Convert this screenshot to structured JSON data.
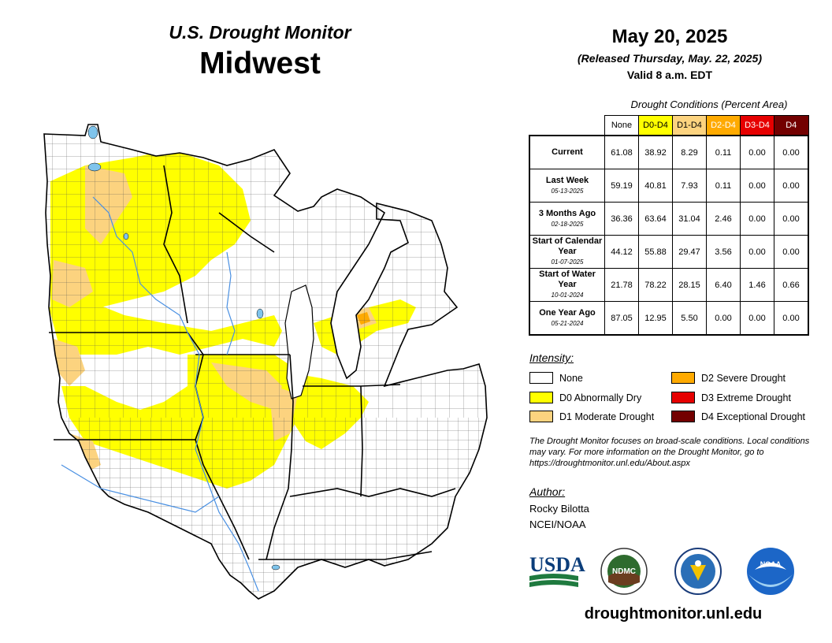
{
  "header": {
    "subtitle": "U.S. Drought Monitor",
    "region": "Midwest",
    "date": "May 20, 2025",
    "released": "(Released Thursday, May. 22, 2025)",
    "valid": "Valid 8 a.m. EDT"
  },
  "table": {
    "caption": "Drought Conditions (Percent Area)",
    "columns": [
      {
        "label": "None",
        "color": "#ffffff",
        "text": "#000000"
      },
      {
        "label": "D0-D4",
        "color": "#ffff00",
        "text": "#000000"
      },
      {
        "label": "D1-D4",
        "color": "#fcd37f",
        "text": "#000000"
      },
      {
        "label": "D2-D4",
        "color": "#ffaa00",
        "text": "#ffffff"
      },
      {
        "label": "D3-D4",
        "color": "#e60000",
        "text": "#ffffff"
      },
      {
        "label": "D4",
        "color": "#730000",
        "text": "#ffffff"
      }
    ],
    "rows": [
      {
        "label": "Current",
        "date": "",
        "values": [
          "61.08",
          "38.92",
          "8.29",
          "0.11",
          "0.00",
          "0.00"
        ]
      },
      {
        "label": "Last Week",
        "date": "05-13-2025",
        "values": [
          "59.19",
          "40.81",
          "7.93",
          "0.11",
          "0.00",
          "0.00"
        ]
      },
      {
        "label": "3 Months Ago",
        "date": "02-18-2025",
        "values": [
          "36.36",
          "63.64",
          "31.04",
          "2.46",
          "0.00",
          "0.00"
        ]
      },
      {
        "label": "Start of Calendar Year",
        "date": "01-07-2025",
        "values": [
          "44.12",
          "55.88",
          "29.47",
          "3.56",
          "0.00",
          "0.00"
        ]
      },
      {
        "label": "Start of Water Year",
        "date": "10-01-2024",
        "values": [
          "21.78",
          "78.22",
          "28.15",
          "6.40",
          "1.46",
          "0.66"
        ]
      },
      {
        "label": "One Year Ago",
        "date": "05-21-2024",
        "values": [
          "87.05",
          "12.95",
          "5.50",
          "0.00",
          "0.00",
          "0.00"
        ]
      }
    ]
  },
  "legend": {
    "title": "Intensity:",
    "items": [
      {
        "label": "None",
        "color": "#ffffff"
      },
      {
        "label": "D0 Abnormally Dry",
        "color": "#ffff00"
      },
      {
        "label": "D1 Moderate Drought",
        "color": "#fcd37f"
      },
      {
        "label": "D2 Severe Drought",
        "color": "#ffaa00"
      },
      {
        "label": "D3 Extreme Drought",
        "color": "#e60000"
      },
      {
        "label": "D4 Exceptional Drought",
        "color": "#730000"
      }
    ]
  },
  "note": "The Drought Monitor focuses on broad-scale conditions. Local conditions may vary. For more information on the Drought Monitor, go to https://droughtmonitor.unl.edu/About.aspx",
  "author": {
    "title": "Author:",
    "name": "Rocky Bilotta",
    "org": "NCEI/NOAA"
  },
  "logos": [
    {
      "name": "usda-logo",
      "text": "USDA"
    },
    {
      "name": "ndmc-logo",
      "text": "NDMC"
    },
    {
      "name": "doc-seal",
      "text": ""
    },
    {
      "name": "noaa-logo",
      "text": "NOAA"
    }
  ],
  "website": "droughtmonitor.unl.edu"
}
